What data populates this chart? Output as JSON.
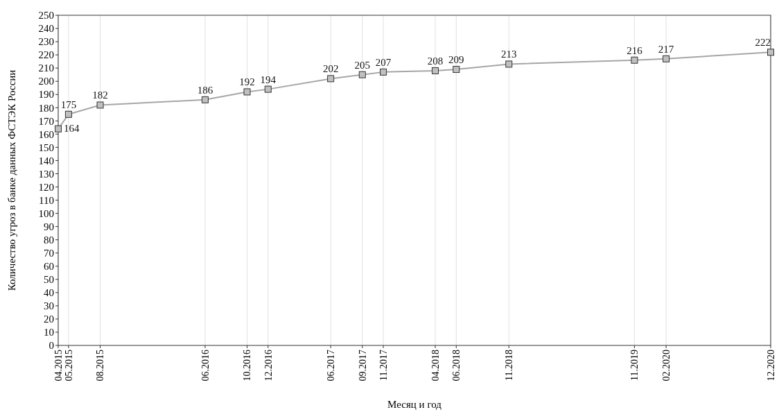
{
  "chart_data": {
    "type": "line",
    "xlabel": "Месяц и год",
    "ylabel": "Количество угроз в банке данных ФСТЭК России",
    "x": [
      "2015-04",
      "2015-05",
      "2015-08",
      "2016-06",
      "2016-10",
      "2016-12",
      "2017-06",
      "2017-09",
      "2017-11",
      "2018-04",
      "2018-06",
      "2018-11",
      "2019-11",
      "2020-02",
      "2020-12"
    ],
    "series": [
      {
        "color": "#a6a6a6",
        "values": [
          164,
          175,
          182,
          186,
          192,
          194,
          202,
          205,
          207,
          208,
          209,
          213,
          216,
          217,
          222
        ]
      }
    ],
    "xlim": [
      "2015-04",
      "2020-12"
    ],
    "xticks": [
      {
        "value": "2015-04",
        "label": "04.2015"
      },
      {
        "value": "2015-05",
        "label": "05.2015"
      },
      {
        "value": "2015-08",
        "label": "08.2015"
      },
      {
        "value": "2016-06",
        "label": "06.2016"
      },
      {
        "value": "2016-10",
        "label": "10.2016"
      },
      {
        "value": "2016-12",
        "label": "12.2016"
      },
      {
        "value": "2017-06",
        "label": "06.2017"
      },
      {
        "value": "2017-09",
        "label": "09.2017"
      },
      {
        "value": "2017-11",
        "label": "11.2017"
      },
      {
        "value": "2018-04",
        "label": "04.2018"
      },
      {
        "value": "2018-06",
        "label": "06.2018"
      },
      {
        "value": "2018-11",
        "label": "11.2018"
      },
      {
        "value": "2019-11",
        "label": "11.2019"
      },
      {
        "value": "2020-02",
        "label": "02.2020"
      },
      {
        "value": "2020-12",
        "label": "12.2020"
      }
    ],
    "ylim": [
      0,
      250
    ],
    "yticks": [
      0,
      10,
      20,
      30,
      40,
      50,
      60,
      70,
      80,
      90,
      100,
      110,
      120,
      130,
      140,
      150,
      160,
      170,
      180,
      190,
      200,
      210,
      220,
      230,
      240,
      250
    ],
    "grid": "x",
    "marker": "square",
    "line_style": "solid",
    "data_labels": true
  }
}
